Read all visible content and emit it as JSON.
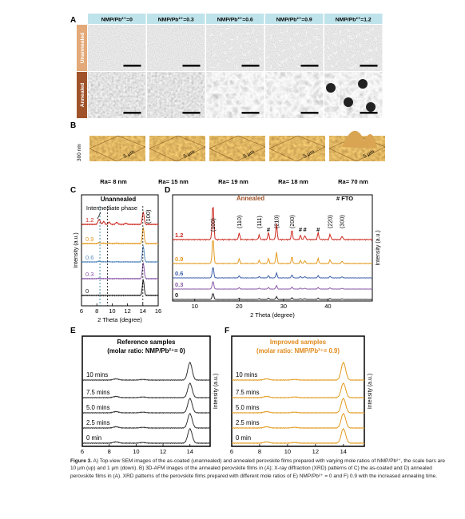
{
  "panel_letters": [
    "A",
    "B",
    "C",
    "D",
    "E",
    "F"
  ],
  "panel_a": {
    "columns": [
      "NMP/Pb²⁺=0",
      "NMP/Pb²⁺=0.3",
      "NMP/Pb²⁺=0.6",
      "NMP/Pb²⁺=0.9",
      "NMP/Pb²⁺=1.2"
    ],
    "rows": [
      "Unannealed",
      "Annealed"
    ],
    "header_color": "#bfe3ea",
    "unannealed_color": "#e3a978",
    "annealed_color": "#a0532a"
  },
  "panel_b": {
    "z_label": "300 nm",
    "scale_label": "5 μm",
    "roughness": [
      "Ra= 8 nm",
      "Ra= 15 nm",
      "Ra= 19 nm",
      "Ra= 18 nm",
      "Ra= 70 nm"
    ]
  },
  "chart_data": [
    {
      "panel": "C",
      "type": "line",
      "title": "Unannealed",
      "annotation": "Intermediate phase",
      "peak_label": "(100)",
      "xlabel": "2 Theta (degree)",
      "ylabel": "Intensity (a.u.)",
      "xlim": [
        6,
        16
      ],
      "xticks": [
        6,
        8,
        10,
        12,
        14,
        16
      ],
      "series": [
        {
          "name": "1.2",
          "color": "#cc2a20"
        },
        {
          "name": "0.9",
          "color": "#e39a1f"
        },
        {
          "name": "0.6",
          "color": "#5a8cc0"
        },
        {
          "name": "0.3",
          "color": "#8a5aa8"
        },
        {
          "name": "0",
          "color": "#222222"
        }
      ]
    },
    {
      "panel": "D",
      "type": "line",
      "title": "Annealed",
      "legend": "#  FTO",
      "xlabel": "2 Theta (degree)",
      "ylabel": "Intensity (a.u.)",
      "xlim": [
        5,
        50
      ],
      "xticks": [
        10,
        20,
        30,
        40
      ],
      "peaks": [
        {
          "label": "(100)",
          "x": 14.1
        },
        {
          "label": "(110)",
          "x": 20.0
        },
        {
          "label": "#",
          "x": 26.6
        },
        {
          "label": "(111)",
          "x": 24.5
        },
        {
          "label": "(210)",
          "x": 28.4
        },
        {
          "label": "(200)",
          "x": 31.9
        },
        {
          "label": "#",
          "x": 33.8
        },
        {
          "label": "#",
          "x": 34.8
        },
        {
          "label": "#",
          "x": 37.8
        },
        {
          "label": "(220)",
          "x": 40.5
        },
        {
          "label": "(300)",
          "x": 43.2
        }
      ],
      "series": [
        {
          "name": "1.2",
          "color": "#cc2a20"
        },
        {
          "name": "0.9",
          "color": "#e39a1f"
        },
        {
          "name": "0.6",
          "color": "#3c5ea8"
        },
        {
          "name": "0.3",
          "color": "#8a5aa8"
        },
        {
          "name": "0",
          "color": "#222222"
        }
      ]
    },
    {
      "panel": "E",
      "type": "line",
      "title": "Reference samples",
      "subtitle": "(molar ratio: NMP/Pb²⁺= 0)",
      "xlabel": "2 Theta (degree)",
      "ylabel": "Intensity (a.u.)",
      "xlim": [
        6,
        15.5
      ],
      "xticks": [
        6,
        8,
        10,
        12,
        14
      ],
      "series": [
        {
          "name": "10 mins"
        },
        {
          "name": "7.5 mins"
        },
        {
          "name": "5.0 mins"
        },
        {
          "name": "2.5 mins"
        },
        {
          "name": "0 min"
        }
      ],
      "color": "#333333"
    },
    {
      "panel": "F",
      "type": "line",
      "title": "Improved samples",
      "subtitle": "(molar ratio: NMP/Pb²⁺= 0.9)",
      "xlabel": "2 Theta (degree)",
      "ylabel": "Intensity (a.u.)",
      "xlim": [
        6,
        15.5
      ],
      "xticks": [
        6,
        8,
        10,
        12,
        14
      ],
      "series": [
        {
          "name": "10 mins"
        },
        {
          "name": "7.5 mins"
        },
        {
          "name": "5.0 mins"
        },
        {
          "name": "2.5 mins"
        },
        {
          "name": "0 min"
        }
      ],
      "color": "#e39a1f",
      "title_color": "#e0891a"
    }
  ],
  "caption": {
    "label": "Figure 3.",
    "text": "A) Top-view SEM images of the as-coated (unannealed) and annealed perovskite films prepared with varying mole ratios of NMP/Pb²⁺, the scale bars are 10 μm (up) and 1 μm (down). B) 3D-AFM images of the annealed perovskite films in (A); X-ray diffraction (XRD) patterns of C) the as-coated and D) annealed perovskite films in (A). XRD patterns of the perovskite films prepared with different mole ratios of E) NMP/Pb²⁺ = 0 and F) 0.9 with the increased annealing time."
  }
}
